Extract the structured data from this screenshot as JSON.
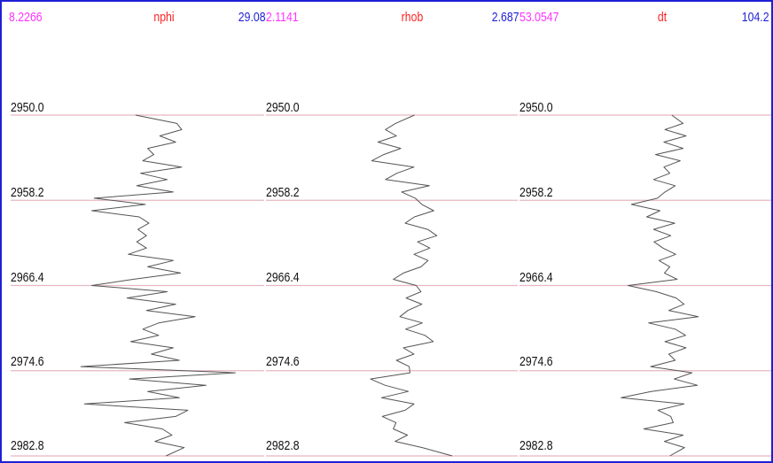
{
  "chart_data": {
    "type": "line",
    "colors": {
      "min": "#ff33ff",
      "name": "#ff2222",
      "max": "#1f1fd6",
      "grid": "#e8b8c0",
      "curve": "#555555",
      "frame": "#1f1fd6"
    },
    "depth_ticks": [
      "2950.0",
      "2958.2",
      "2966.4",
      "2974.6",
      "2982.8"
    ],
    "ylim": [
      2950.0,
      2982.8
    ],
    "tracks": [
      {
        "name": "nphi",
        "min_label": "8.2266",
        "max_label": "29.08",
        "xlim": [
          8.2266,
          29.08
        ],
        "depth": [
          2950.0,
          2950.8,
          2951.4,
          2952.0,
          2952.6,
          2953.2,
          2953.8,
          2954.4,
          2955.0,
          2955.6,
          2956.2,
          2956.8,
          2957.4,
          2958.0,
          2958.6,
          2959.2,
          2959.8,
          2960.4,
          2961.0,
          2961.6,
          2962.2,
          2962.8,
          2963.4,
          2964.0,
          2964.6,
          2965.2,
          2965.8,
          2966.4,
          2967.0,
          2967.6,
          2968.2,
          2968.8,
          2969.4,
          2970.0,
          2970.6,
          2971.2,
          2971.8,
          2972.4,
          2973.0,
          2973.6,
          2974.2,
          2974.8,
          2975.4,
          2976.0,
          2976.6,
          2977.2,
          2977.8,
          2978.4,
          2979.0,
          2979.6,
          2980.2,
          2980.8,
          2981.4,
          2982.0,
          2982.8
        ],
        "values": [
          18.5,
          21.9,
          22.3,
          20.5,
          21.8,
          19.5,
          20.0,
          19.1,
          22.3,
          18.9,
          21.1,
          18.6,
          21.6,
          15.1,
          19.3,
          14.9,
          18.8,
          19.6,
          18.7,
          19.4,
          18.6,
          19.4,
          17.9,
          21.6,
          19.5,
          22.2,
          18.3,
          14.9,
          21.1,
          17.8,
          21.8,
          19.4,
          23.4,
          20.4,
          19.1,
          20.4,
          18.1,
          21.6,
          19.8,
          22.1,
          14.0,
          26.7,
          18.0,
          24.3,
          19.5,
          22.1,
          14.3,
          22.8,
          21.8,
          17.6,
          20.7,
          21.5,
          20.1,
          22.5,
          21.0
        ]
      },
      {
        "name": "rhob",
        "min_label": "2.1141",
        "max_label": "2.687",
        "xlim": [
          2.1141,
          2.687
        ],
        "depth": [
          2950.0,
          2950.8,
          2951.4,
          2952.0,
          2952.6,
          2953.2,
          2953.8,
          2954.4,
          2955.0,
          2955.6,
          2956.2,
          2956.8,
          2957.4,
          2958.0,
          2958.6,
          2959.2,
          2959.8,
          2960.4,
          2961.0,
          2961.6,
          2962.2,
          2962.8,
          2963.4,
          2964.0,
          2964.6,
          2965.2,
          2965.8,
          2966.4,
          2967.0,
          2967.6,
          2968.2,
          2968.8,
          2969.4,
          2970.0,
          2970.6,
          2971.2,
          2971.8,
          2972.4,
          2973.0,
          2973.6,
          2974.2,
          2974.8,
          2975.4,
          2976.0,
          2976.6,
          2977.2,
          2977.8,
          2978.4,
          2979.0,
          2979.6,
          2980.2,
          2980.8,
          2981.4,
          2982.0,
          2982.8
        ],
        "values": [
          2.452,
          2.409,
          2.386,
          2.411,
          2.369,
          2.421,
          2.382,
          2.355,
          2.451,
          2.412,
          2.386,
          2.486,
          2.423,
          2.454,
          2.469,
          2.496,
          2.452,
          2.431,
          2.482,
          2.503,
          2.459,
          2.487,
          2.451,
          2.483,
          2.467,
          2.427,
          2.404,
          2.456,
          2.467,
          2.433,
          2.469,
          2.437,
          2.419,
          2.47,
          2.432,
          2.476,
          2.495,
          2.427,
          2.451,
          2.411,
          2.44,
          2.442,
          2.352,
          2.385,
          2.438,
          2.377,
          2.451,
          2.431,
          2.379,
          2.41,
          2.404,
          2.436,
          2.408,
          2.47,
          2.538
        ]
      },
      {
        "name": "dt",
        "min_label": "53.0547",
        "max_label": "104.2",
        "xlim": [
          53.0547,
          104.2
        ],
        "depth": [
          2950.0,
          2950.8,
          2951.4,
          2952.0,
          2952.6,
          2953.2,
          2953.8,
          2954.4,
          2955.0,
          2955.6,
          2956.2,
          2956.8,
          2957.4,
          2958.0,
          2958.6,
          2959.2,
          2959.8,
          2960.4,
          2961.0,
          2961.6,
          2962.2,
          2962.8,
          2963.4,
          2964.0,
          2964.6,
          2965.2,
          2965.8,
          2966.4,
          2967.0,
          2967.6,
          2968.2,
          2968.8,
          2969.4,
          2970.0,
          2970.6,
          2971.2,
          2971.8,
          2972.4,
          2973.0,
          2973.6,
          2974.2,
          2974.8,
          2975.4,
          2976.0,
          2976.6,
          2977.2,
          2977.8,
          2978.4,
          2979.0,
          2979.6,
          2980.2,
          2980.8,
          2981.4,
          2982.0,
          2982.8
        ],
        "values": [
          84.0,
          86.3,
          82.6,
          86.9,
          82.4,
          86.3,
          80.7,
          85.7,
          82.4,
          83.6,
          80.3,
          84.7,
          82.6,
          81.1,
          75.8,
          81.6,
          78.9,
          84.6,
          80.3,
          83.8,
          80.4,
          82.2,
          84.8,
          81.4,
          83.6,
          82.5,
          85.1,
          75.1,
          80.9,
          84.9,
          86.5,
          83.4,
          89.4,
          79.3,
          84.7,
          86.8,
          82.6,
          86.9,
          83.4,
          84.7,
          79.7,
          88.1,
          84.5,
          89.2,
          79.8,
          73.7,
          86.5,
          81.2,
          83.8,
          84.3,
          78.3,
          86.3,
          82.5,
          86.6,
          83.6
        ]
      }
    ]
  }
}
